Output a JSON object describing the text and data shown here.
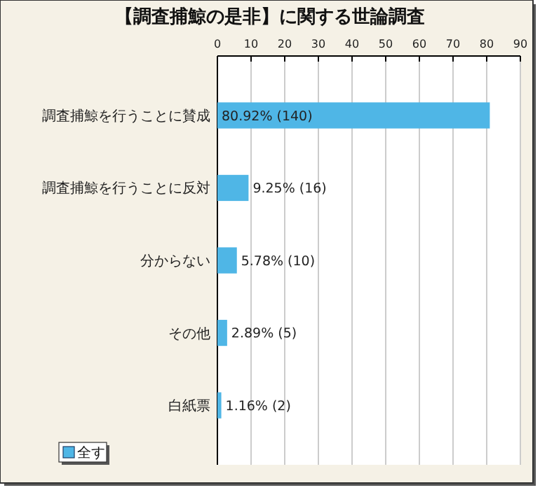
{
  "chart_data": {
    "type": "bar",
    "orientation": "horizontal",
    "title": "【調査捕鯨の是非】に関する世論調査",
    "categories": [
      "調査捕鯨を行うことに賛成",
      "調査捕鯨を行うことに反対",
      "分からない",
      "その他",
      "白紙票"
    ],
    "series": [
      {
        "name": "全す",
        "color": "#4fb6e6",
        "values": [
          80.92,
          9.25,
          5.78,
          2.89,
          1.16
        ],
        "value_labels": [
          "80.92% (140)",
          "9.25% (16)",
          "5.78% (10)",
          "2.89% (5)",
          "1.16% (2)"
        ]
      }
    ],
    "xlim": [
      0,
      90
    ],
    "xticks": [
      0,
      10,
      20,
      30,
      40,
      50,
      60,
      70,
      80,
      90
    ],
    "grid": "x",
    "legend": "bottom left"
  }
}
